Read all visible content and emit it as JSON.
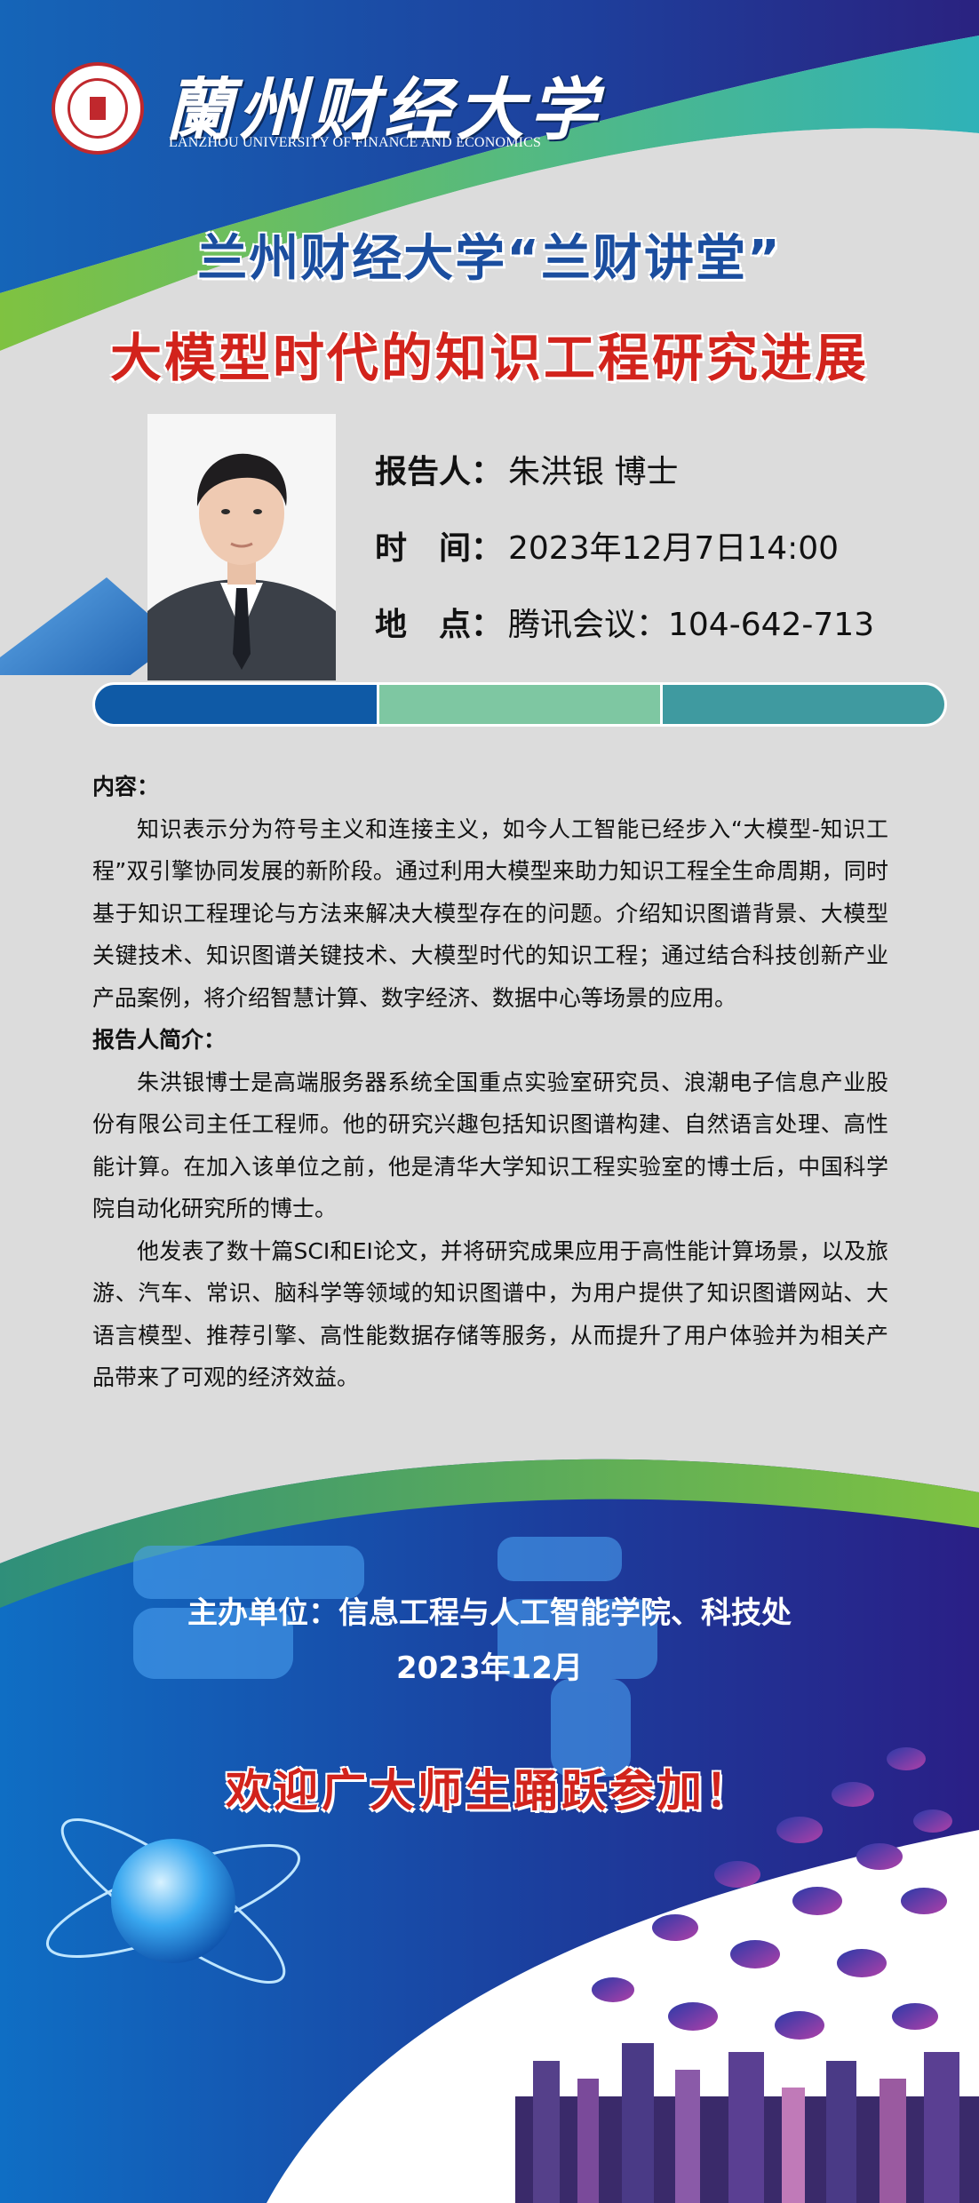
{
  "header": {
    "university_cn": "蘭州财经大学",
    "university_en": "LANZHOU UNIVERSITY OF FINANCE AND ECONOMICS",
    "event_series": "兰州财经大学“兰财讲堂”",
    "talk_title": "大模型时代的知识工程研究进展"
  },
  "info": {
    "speaker_label": "报告人：",
    "speaker": "朱洪银 博士",
    "time_label": "时　间：",
    "time": "2023年12月7日14:00",
    "place_label": "地　点：",
    "place": "腾讯会议：104-642-713"
  },
  "content": {
    "heading": "内容：",
    "text": "知识表示分为符号主义和连接主义，如今人工智能已经步入“大模型-知识工程”双引擎协同发展的新阶段。通过利用大模型来助力知识工程全生命周期，同时基于知识工程理论与方法来解决大模型存在的问题。介绍知识图谱背景、大模型关键技术、知识图谱关键技术、大模型时代的知识工程；通过结合科技创新产业产品案例，将介绍智慧计算、数字经济、数据中心等场景的应用。"
  },
  "bio": {
    "heading": "报告人简介：",
    "para1": "朱洪银博士是高端服务器系统全国重点实验室研究员、浪潮电子信息产业股份有限公司主任工程师。他的研究兴趣包括知识图谱构建、自然语言处理、高性能计算。在加入该单位之前，他是清华大学知识工程实验室的博士后，中国科学院自动化研究所的博士。",
    "para2": "他发表了数十篇SCI和EI论文，并将研究成果应用于高性能计算场景，以及旅游、汽车、常识、脑科学等领域的知识图谱中，为用户提供了知识图谱网站、大语言模型、推荐引擎、高性能数据存储等服务，从而提升了用户体验并为相关产品带来了可观的经济效益。"
  },
  "footer": {
    "organizer": "主办单位：信息工程与人工智能学院、科技处",
    "date": "2023年12月",
    "welcome": "欢迎广大师生踊跃参加！"
  },
  "colors": {
    "title_blue": "#1b4e9f",
    "title_red": "#d2231c",
    "bar_left": "#0f5aa6",
    "bar_mid": "#7ec7a2",
    "bar_right": "#3f9aa0"
  }
}
